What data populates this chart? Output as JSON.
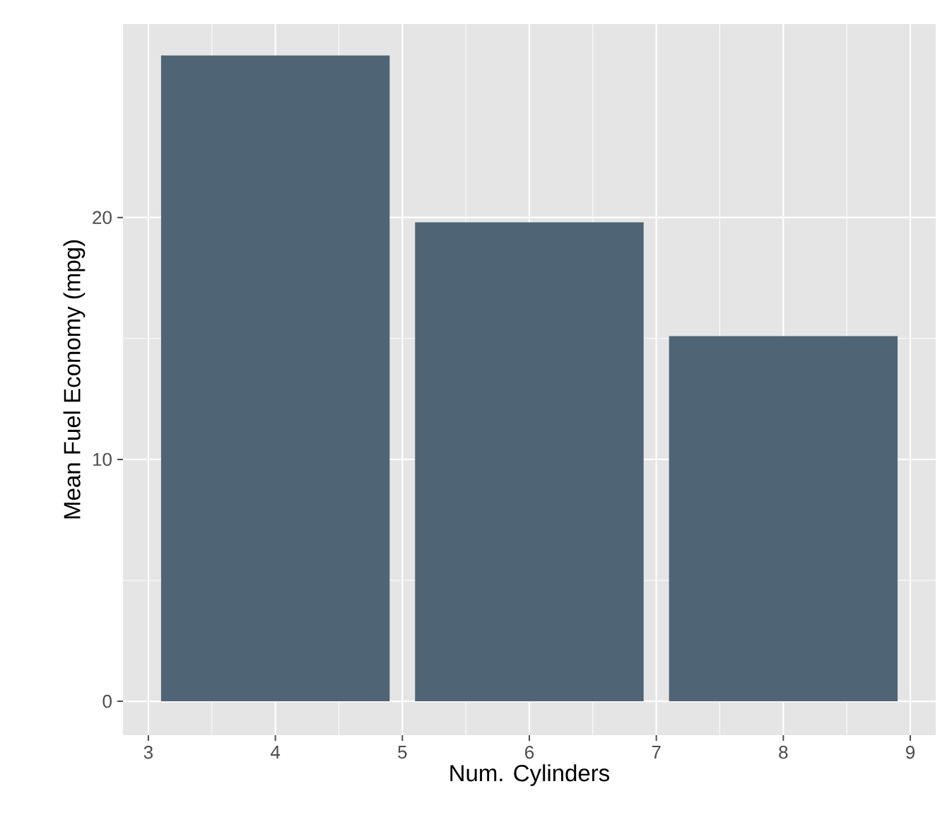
{
  "chart_data": {
    "type": "bar",
    "xlabel": "Num. Cylinders",
    "ylabel": "Mean Fuel Economy (mpg)",
    "x": [
      4,
      6,
      8
    ],
    "values": [
      26.7,
      19.8,
      15.1
    ],
    "color": "#4f6575",
    "xlim": [
      2.8,
      9.2
    ],
    "ylim": [
      -1.4,
      28
    ],
    "xticks": [
      3,
      4,
      5,
      6,
      7,
      8,
      9
    ],
    "yticks": [
      0,
      10,
      20
    ],
    "grid": true
  }
}
